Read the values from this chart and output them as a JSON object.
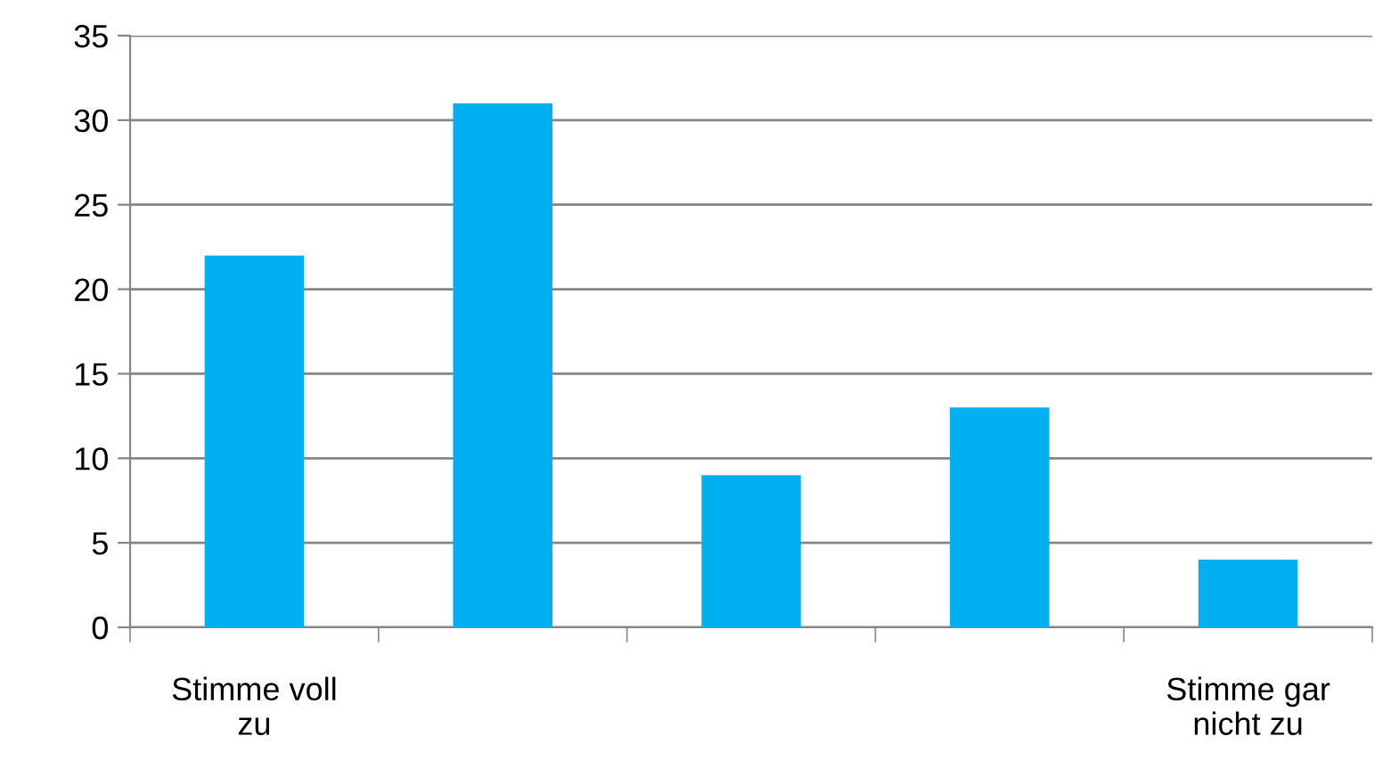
{
  "chart_data": {
    "type": "bar",
    "categories": [
      "Stimme voll zu",
      null,
      null,
      null,
      "Stimme gar nicht zu"
    ],
    "values": [
      22,
      31,
      9,
      13,
      4
    ],
    "color": "#00b0f0",
    "ylim": [
      0,
      35
    ],
    "yticks": [
      0,
      5,
      10,
      15,
      20,
      25,
      30,
      35
    ],
    "grid": "y",
    "legend": false
  }
}
